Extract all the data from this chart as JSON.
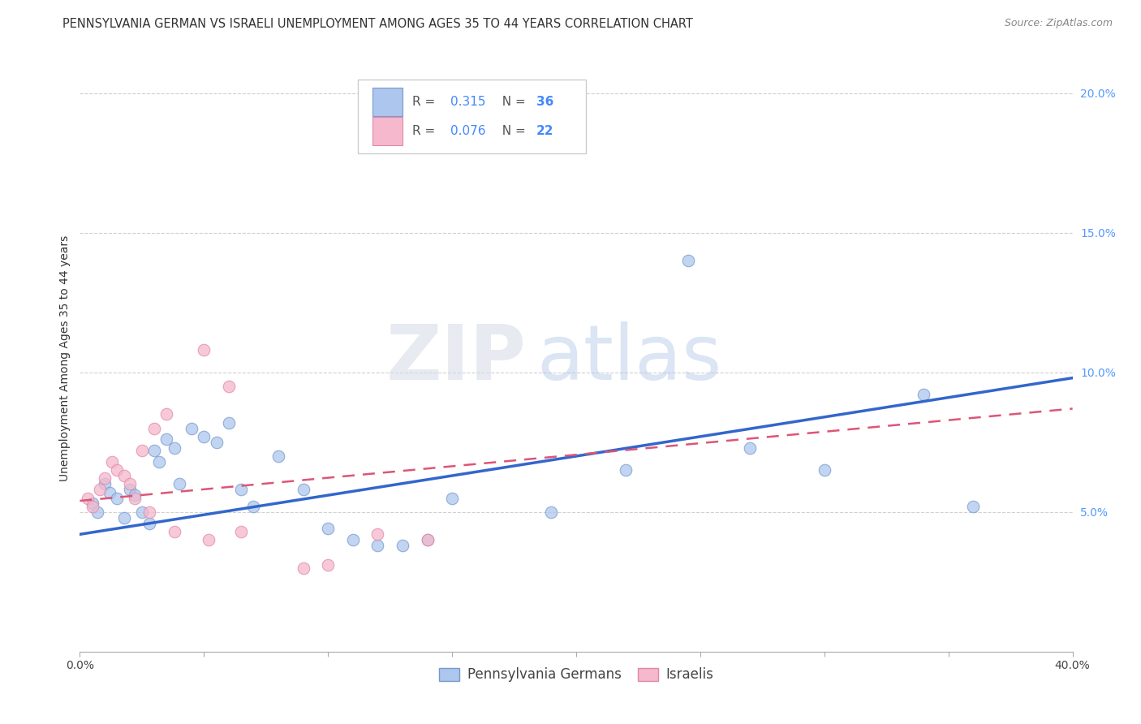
{
  "title": "PENNSYLVANIA GERMAN VS ISRAELI UNEMPLOYMENT AMONG AGES 35 TO 44 YEARS CORRELATION CHART",
  "source": "Source: ZipAtlas.com",
  "ylabel": "Unemployment Among Ages 35 to 44 years",
  "xlim": [
    0.0,
    0.4
  ],
  "ylim": [
    0.0,
    0.21
  ],
  "xticks": [
    0.0,
    0.05,
    0.1,
    0.15,
    0.2,
    0.25,
    0.3,
    0.35,
    0.4
  ],
  "xticklabels": [
    "0.0%",
    "",
    "",
    "",
    "",
    "",
    "",
    "",
    "40.0%"
  ],
  "yticks": [
    0.05,
    0.1,
    0.15,
    0.2
  ],
  "yticklabels": [
    "5.0%",
    "10.0%",
    "15.0%",
    "20.0%"
  ],
  "background_color": "#ffffff",
  "grid_color": "#d0d0d0",
  "watermark_zip": "ZIP",
  "watermark_atlas": "atlas",
  "blue_scatter_x": [
    0.005,
    0.007,
    0.01,
    0.012,
    0.015,
    0.018,
    0.02,
    0.022,
    0.025,
    0.028,
    0.03,
    0.032,
    0.035,
    0.038,
    0.04,
    0.045,
    0.05,
    0.055,
    0.06,
    0.065,
    0.07,
    0.08,
    0.09,
    0.1,
    0.11,
    0.12,
    0.13,
    0.14,
    0.15,
    0.19,
    0.22,
    0.245,
    0.27,
    0.3,
    0.34,
    0.36
  ],
  "blue_scatter_y": [
    0.053,
    0.05,
    0.06,
    0.057,
    0.055,
    0.048,
    0.058,
    0.056,
    0.05,
    0.046,
    0.072,
    0.068,
    0.076,
    0.073,
    0.06,
    0.08,
    0.077,
    0.075,
    0.082,
    0.058,
    0.052,
    0.07,
    0.058,
    0.044,
    0.04,
    0.038,
    0.038,
    0.04,
    0.055,
    0.05,
    0.065,
    0.14,
    0.073,
    0.065,
    0.092,
    0.052
  ],
  "pink_scatter_x": [
    0.003,
    0.005,
    0.008,
    0.01,
    0.013,
    0.015,
    0.018,
    0.02,
    0.022,
    0.025,
    0.028,
    0.03,
    0.035,
    0.038,
    0.05,
    0.052,
    0.06,
    0.065,
    0.09,
    0.1,
    0.12,
    0.14
  ],
  "pink_scatter_y": [
    0.055,
    0.052,
    0.058,
    0.062,
    0.068,
    0.065,
    0.063,
    0.06,
    0.055,
    0.072,
    0.05,
    0.08,
    0.085,
    0.043,
    0.108,
    0.04,
    0.095,
    0.043,
    0.03,
    0.031,
    0.042,
    0.04
  ],
  "blue_line_x": [
    0.0,
    0.4
  ],
  "blue_line_y": [
    0.042,
    0.098
  ],
  "pink_line_x": [
    0.0,
    0.4
  ],
  "pink_line_y": [
    0.054,
    0.087
  ],
  "blue_scatter_color": "#adc6ed",
  "blue_scatter_edge": "#7799cc",
  "pink_scatter_color": "#f5b8cc",
  "pink_scatter_edge": "#e088a8",
  "blue_line_color": "#3366cc",
  "pink_line_color": "#dd5577",
  "legend_R_blue": "0.315",
  "legend_N_blue": "36",
  "legend_R_pink": "0.076",
  "legend_N_pink": "22",
  "legend_label_blue": "Pennsylvania Germans",
  "legend_label_pink": "Israelis",
  "title_fontsize": 10.5,
  "axis_label_fontsize": 10,
  "tick_fontsize": 10,
  "legend_fontsize": 11
}
